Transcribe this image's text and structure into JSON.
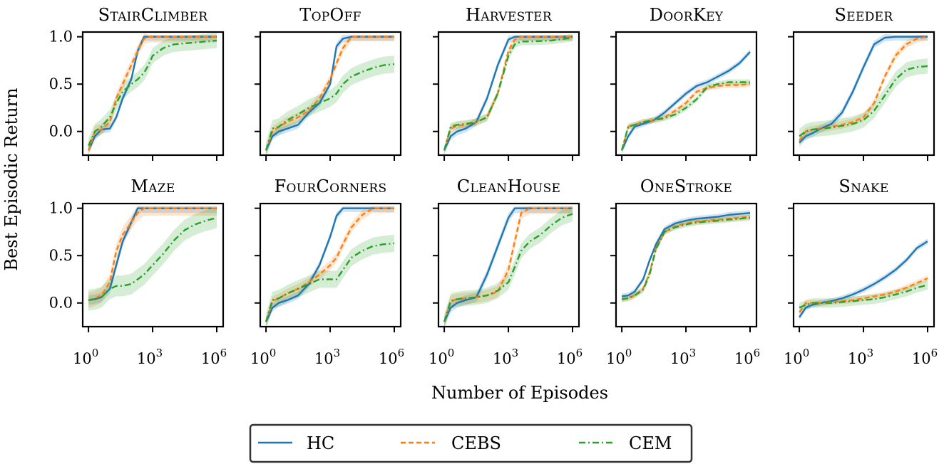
{
  "chart_data": {
    "type": "line",
    "figure": {
      "ylabel": "Best Episodic Return",
      "xlabel": "Number of Episodes",
      "xscale": "log",
      "xlim_exponents": [
        -0.27,
        6.3
      ],
      "ylim": [
        -0.25,
        1.05
      ],
      "xticks": [
        {
          "value": 1,
          "label_base": "10",
          "label_exp": "0"
        },
        {
          "value": 1000,
          "label_base": "10",
          "label_exp": "3"
        },
        {
          "value": 1000000,
          "label_base": "10",
          "label_exp": "6"
        }
      ],
      "yticks": [
        {
          "value": 0.0,
          "label": "0.0"
        },
        {
          "value": 0.5,
          "label": "0.5"
        },
        {
          "value": 1.0,
          "label": "1.0"
        }
      ],
      "legend": {
        "placement": "bottom-center",
        "entries": [
          {
            "name": "HC",
            "color": "#1f77b4",
            "style": "solid"
          },
          {
            "name": "CEBS",
            "color": "#ff7f0e",
            "style": "dashed"
          },
          {
            "name": "CEM",
            "color": "#2ca02c",
            "style": "dashdot"
          }
        ]
      }
    },
    "panels": [
      {
        "title": "StairClimber",
        "x_log10": [
          0,
          0.3,
          0.6,
          1.0,
          1.3,
          1.6,
          2.0,
          2.3,
          2.6,
          2.8,
          3.0,
          3.5,
          4.0,
          5.0,
          6.0
        ],
        "series": [
          {
            "name": "HC",
            "values": [
              -0.2,
              -0.05,
              0.02,
              0.03,
              0.15,
              0.35,
              0.55,
              0.85,
              1.0,
              1.0,
              1.0,
              1.0,
              1.0,
              1.0,
              1.0
            ],
            "band": 0.04
          },
          {
            "name": "CEBS",
            "values": [
              -0.2,
              0.0,
              0.02,
              0.1,
              0.35,
              0.5,
              0.7,
              0.85,
              0.98,
              1.0,
              1.0,
              1.0,
              1.0,
              1.0,
              1.0
            ],
            "band": 0.06
          },
          {
            "name": "CEM",
            "values": [
              -0.15,
              0.0,
              0.05,
              0.15,
              0.3,
              0.42,
              0.5,
              0.55,
              0.62,
              0.7,
              0.8,
              0.88,
              0.92,
              0.94,
              0.96
            ],
            "band": 0.08
          }
        ]
      },
      {
        "title": "TopOff",
        "x_log10": [
          0,
          0.3,
          0.6,
          1.0,
          1.5,
          2.0,
          2.5,
          3.0,
          3.3,
          3.6,
          4.0,
          4.5,
          5.0,
          5.5,
          6.0
        ],
        "series": [
          {
            "name": "HC",
            "values": [
              -0.2,
              -0.05,
              0.0,
              0.03,
              0.07,
              0.2,
              0.3,
              0.5,
              0.9,
              0.98,
              1.0,
              1.0,
              1.0,
              1.0,
              1.0
            ],
            "band": 0.04
          },
          {
            "name": "CEBS",
            "values": [
              -0.2,
              0.0,
              0.05,
              0.1,
              0.15,
              0.22,
              0.35,
              0.55,
              0.72,
              0.88,
              1.0,
              1.0,
              1.0,
              1.0,
              1.0
            ],
            "band": 0.05
          },
          {
            "name": "CEM",
            "values": [
              -0.2,
              0.03,
              0.05,
              0.12,
              0.18,
              0.25,
              0.3,
              0.35,
              0.4,
              0.5,
              0.58,
              0.63,
              0.67,
              0.7,
              0.71
            ],
            "band": 0.09
          }
        ]
      },
      {
        "title": "Harvester",
        "x_log10": [
          0,
          0.3,
          0.6,
          1.0,
          1.5,
          2.0,
          2.5,
          3.0,
          3.3,
          3.6,
          4.0,
          5.0,
          6.0
        ],
        "series": [
          {
            "name": "HC",
            "values": [
              -0.2,
              -0.05,
              0.0,
              0.03,
              0.1,
              0.35,
              0.7,
              0.97,
              1.0,
              1.0,
              1.0,
              1.0,
              1.0
            ],
            "band": 0.04
          },
          {
            "name": "CEBS",
            "values": [
              -0.2,
              0.03,
              0.06,
              0.07,
              0.1,
              0.15,
              0.4,
              0.85,
              0.97,
              1.0,
              1.0,
              1.0,
              1.0
            ],
            "band": 0.04
          },
          {
            "name": "CEM",
            "values": [
              -0.2,
              0.05,
              0.07,
              0.08,
              0.1,
              0.15,
              0.4,
              0.8,
              0.92,
              0.95,
              0.95,
              0.96,
              0.99
            ],
            "band": 0.04
          }
        ]
      },
      {
        "title": "DoorKey",
        "x_log10": [
          0,
          0.3,
          0.6,
          1.0,
          1.5,
          2.0,
          2.5,
          3.0,
          3.5,
          4.0,
          4.5,
          5.0,
          5.5,
          6.0
        ],
        "series": [
          {
            "name": "HC",
            "values": [
              -0.2,
              -0.05,
              0.05,
              0.08,
              0.12,
              0.2,
              0.3,
              0.4,
              0.48,
              0.52,
              0.58,
              0.64,
              0.72,
              0.84
            ],
            "band": 0.03
          },
          {
            "name": "CEBS",
            "values": [
              -0.2,
              0.05,
              0.07,
              0.1,
              0.12,
              0.15,
              0.22,
              0.3,
              0.42,
              0.46,
              0.48,
              0.49,
              0.49,
              0.5
            ],
            "band": 0.03
          },
          {
            "name": "CEM",
            "values": [
              -0.2,
              0.05,
              0.07,
              0.1,
              0.12,
              0.14,
              0.18,
              0.25,
              0.34,
              0.47,
              0.5,
              0.52,
              0.52,
              0.52
            ],
            "band": 0.03
          }
        ]
      },
      {
        "title": "Seeder",
        "x_log10": [
          0,
          0.3,
          0.6,
          1.0,
          1.5,
          2.0,
          2.5,
          3.0,
          3.5,
          4.0,
          4.5,
          5.0,
          5.5,
          6.0
        ],
        "series": [
          {
            "name": "HC",
            "values": [
              -0.12,
              -0.05,
              -0.02,
              0.03,
              0.08,
              0.2,
              0.42,
              0.68,
              0.92,
              0.99,
              1.0,
              1.0,
              1.0,
              1.0
            ],
            "band": 0.04
          },
          {
            "name": "CEBS",
            "values": [
              -0.1,
              0.0,
              0.02,
              0.03,
              0.05,
              0.07,
              0.1,
              0.15,
              0.3,
              0.58,
              0.8,
              0.92,
              0.98,
              1.0
            ],
            "band": 0.04
          },
          {
            "name": "CEM",
            "values": [
              -0.05,
              0.0,
              0.02,
              0.03,
              0.04,
              0.06,
              0.08,
              0.12,
              0.22,
              0.38,
              0.55,
              0.65,
              0.68,
              0.69
            ],
            "band": 0.08
          }
        ]
      },
      {
        "title": "Maze",
        "x_log10": [
          0,
          0.3,
          0.6,
          1.0,
          1.3,
          1.6,
          2.0,
          2.3,
          2.6,
          3.0,
          3.5,
          4.0,
          4.5,
          5.0,
          5.5,
          6.0
        ],
        "series": [
          {
            "name": "HC",
            "values": [
              0.03,
              0.04,
              0.06,
              0.15,
              0.4,
              0.65,
              0.85,
              1.0,
              1.0,
              1.0,
              1.0,
              1.0,
              1.0,
              1.0,
              1.0,
              1.0
            ],
            "band": 0.05
          },
          {
            "name": "CEBS",
            "values": [
              0.03,
              0.05,
              0.08,
              0.22,
              0.55,
              0.72,
              0.85,
              0.95,
              1.0,
              1.0,
              1.0,
              1.0,
              1.0,
              1.0,
              1.0,
              1.0
            ],
            "band": 0.08
          },
          {
            "name": "CEM",
            "values": [
              0.03,
              0.04,
              0.06,
              0.15,
              0.18,
              0.18,
              0.2,
              0.25,
              0.3,
              0.4,
              0.52,
              0.66,
              0.77,
              0.83,
              0.87,
              0.9
            ],
            "band": 0.11
          }
        ]
      },
      {
        "title": "FourCorners",
        "x_log10": [
          0,
          0.3,
          0.6,
          1.0,
          1.5,
          2.0,
          2.5,
          3.0,
          3.3,
          3.6,
          4.0,
          4.5,
          5.0,
          5.5,
          6.0
        ],
        "series": [
          {
            "name": "HC",
            "values": [
              -0.2,
              -0.05,
              0.0,
              0.03,
              0.08,
              0.2,
              0.4,
              0.7,
              0.92,
              1.0,
              1.0,
              1.0,
              1.0,
              1.0,
              1.0
            ],
            "band": 0.04
          },
          {
            "name": "CEBS",
            "values": [
              -0.2,
              0.02,
              0.05,
              0.1,
              0.15,
              0.22,
              0.3,
              0.4,
              0.48,
              0.62,
              0.8,
              0.93,
              1.0,
              1.0,
              1.0
            ],
            "band": 0.05
          },
          {
            "name": "CEM",
            "values": [
              -0.2,
              0.03,
              0.05,
              0.1,
              0.15,
              0.2,
              0.25,
              0.25,
              0.25,
              0.35,
              0.48,
              0.55,
              0.6,
              0.62,
              0.63
            ],
            "band": 0.09
          }
        ]
      },
      {
        "title": "CleanHouse",
        "x_log10": [
          0,
          0.3,
          0.6,
          1.0,
          1.5,
          2.0,
          2.5,
          3.0,
          3.3,
          3.6,
          4.0,
          4.5,
          5.0,
          5.5,
          6.0
        ],
        "series": [
          {
            "name": "HC",
            "values": [
              -0.2,
              -0.05,
              0.0,
              0.03,
              0.06,
              0.3,
              0.6,
              0.9,
              1.0,
              1.0,
              1.0,
              1.0,
              1.0,
              1.0,
              1.0
            ],
            "band": 0.05
          },
          {
            "name": "CEBS",
            "values": [
              -0.2,
              0.02,
              0.04,
              0.05,
              0.06,
              0.08,
              0.12,
              0.35,
              0.65,
              0.95,
              1.0,
              1.0,
              1.0,
              1.0,
              1.0
            ],
            "band": 0.06
          },
          {
            "name": "CEM",
            "values": [
              -0.2,
              0.02,
              0.04,
              0.05,
              0.06,
              0.08,
              0.13,
              0.22,
              0.38,
              0.55,
              0.65,
              0.72,
              0.82,
              0.9,
              0.94
            ],
            "band": 0.08
          }
        ]
      },
      {
        "title": "OneStroke",
        "x_log10": [
          0,
          0.3,
          0.6,
          1.0,
          1.3,
          1.6,
          2.0,
          2.5,
          3.0,
          3.5,
          4.0,
          4.5,
          5.0,
          5.5,
          6.0
        ],
        "series": [
          {
            "name": "HC",
            "values": [
              0.07,
              0.08,
              0.12,
              0.25,
              0.45,
              0.62,
              0.78,
              0.84,
              0.87,
              0.89,
              0.9,
              0.91,
              0.93,
              0.94,
              0.95
            ],
            "band": 0.03
          },
          {
            "name": "CEBS",
            "values": [
              0.04,
              0.05,
              0.08,
              0.15,
              0.32,
              0.58,
              0.75,
              0.81,
              0.84,
              0.86,
              0.87,
              0.88,
              0.89,
              0.9,
              0.91
            ],
            "band": 0.03
          },
          {
            "name": "CEM",
            "values": [
              0.04,
              0.05,
              0.08,
              0.14,
              0.3,
              0.57,
              0.75,
              0.8,
              0.83,
              0.85,
              0.86,
              0.87,
              0.88,
              0.89,
              0.9
            ],
            "band": 0.03
          }
        ]
      },
      {
        "title": "Snake",
        "x_log10": [
          0,
          0.3,
          0.6,
          1.0,
          1.5,
          2.0,
          2.5,
          3.0,
          3.5,
          4.0,
          4.5,
          5.0,
          5.5,
          6.0
        ],
        "series": [
          {
            "name": "HC",
            "values": [
              -0.15,
              -0.05,
              -0.02,
              0.0,
              0.02,
              0.05,
              0.09,
              0.14,
              0.2,
              0.27,
              0.35,
              0.45,
              0.58,
              0.65
            ],
            "band": 0.03
          },
          {
            "name": "CEBS",
            "values": [
              -0.1,
              0.0,
              0.0,
              0.0,
              0.01,
              0.02,
              0.03,
              0.05,
              0.07,
              0.09,
              0.12,
              0.16,
              0.21,
              0.26
            ],
            "band": 0.03
          },
          {
            "name": "CEM",
            "values": [
              -0.05,
              -0.02,
              0.0,
              0.0,
              0.0,
              0.01,
              0.02,
              0.03,
              0.04,
              0.06,
              0.09,
              0.12,
              0.16,
              0.19
            ],
            "band": 0.05
          }
        ]
      }
    ]
  }
}
